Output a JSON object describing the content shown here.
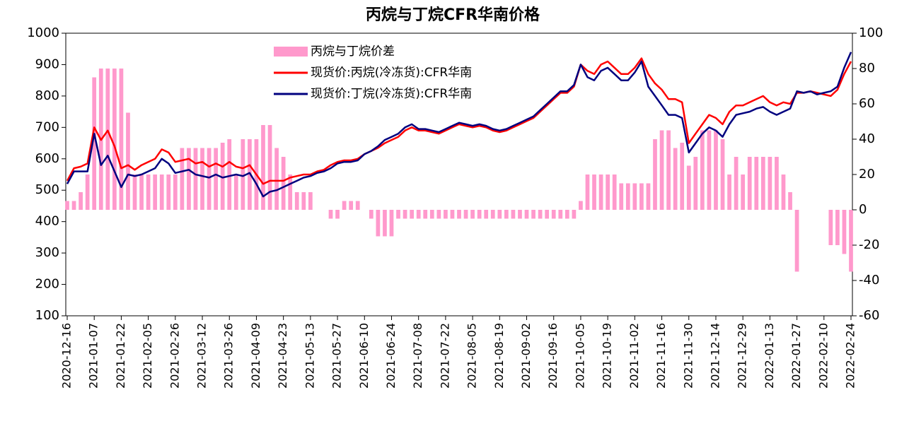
{
  "chart_data": {
    "type": "combo",
    "title": "丙烷与丁烷CFR华南价格",
    "categories": [
      "2020-12-16",
      null,
      null,
      null,
      "2021-01-07",
      null,
      null,
      null,
      "2021-01-22",
      null,
      null,
      null,
      "2021-02-05",
      null,
      null,
      null,
      "2021-02-26",
      null,
      null,
      null,
      "2021-03-12",
      null,
      null,
      null,
      "2021-03-26",
      null,
      null,
      null,
      "2021-04-09",
      null,
      null,
      null,
      "2021-04-23",
      null,
      null,
      null,
      "2021-05-13",
      null,
      null,
      null,
      "2021-05-27",
      null,
      null,
      null,
      "2021-06-10",
      null,
      null,
      null,
      "2021-06-24",
      null,
      null,
      null,
      "2021-07-08",
      null,
      null,
      null,
      "2021-07-22",
      null,
      null,
      null,
      "2021-08-05",
      null,
      null,
      null,
      "2021-08-19",
      null,
      null,
      null,
      "2021-09-02",
      null,
      null,
      null,
      "2021-09-16",
      null,
      null,
      null,
      "2021-10-05",
      null,
      null,
      null,
      "2021-10-19",
      null,
      null,
      null,
      "2021-11-02",
      null,
      null,
      null,
      "2021-11-16",
      null,
      null,
      null,
      "2021-11-30",
      null,
      null,
      null,
      "2021-12-14",
      null,
      null,
      null,
      "2021-12-29",
      null,
      null,
      null,
      "2022-01-13",
      null,
      null,
      null,
      "2022-01-27",
      null,
      null,
      null,
      "2022-02-10",
      null,
      null,
      null,
      "2022-02-24"
    ],
    "series": [
      {
        "name": "丙烷与丁烷价差",
        "type": "bar",
        "axis": "y2",
        "color": "#ff99cc",
        "values": [
          5,
          5,
          10,
          20,
          75,
          80,
          80,
          80,
          80,
          55,
          20,
          20,
          20,
          20,
          20,
          20,
          20,
          35,
          35,
          35,
          35,
          35,
          35,
          38,
          40,
          20,
          40,
          40,
          40,
          48,
          48,
          35,
          30,
          20,
          10,
          10,
          10,
          0,
          0,
          -5,
          -5,
          5,
          5,
          5,
          0,
          -5,
          -15,
          -15,
          -15,
          -5,
          -5,
          -5,
          -5,
          -5,
          -5,
          -5,
          -5,
          -5,
          -5,
          -5,
          -5,
          -5,
          -5,
          -5,
          -5,
          -5,
          -5,
          -5,
          -5,
          -5,
          -5,
          -5,
          -5,
          -5,
          -5,
          -5,
          5,
          20,
          20,
          20,
          20,
          20,
          15,
          15,
          15,
          15,
          15,
          40,
          45,
          45,
          35,
          38,
          25,
          30,
          45,
          45,
          45,
          40,
          20,
          30,
          20,
          30,
          30,
          30,
          30,
          30,
          20,
          10,
          -35,
          0,
          0,
          0,
          0,
          -20,
          -20,
          -25,
          -35
        ]
      },
      {
        "name": "现货价:丙烷(冷冻货):CFR华南",
        "type": "line",
        "axis": "y",
        "color": "#ff0000",
        "values": [
          530,
          570,
          575,
          585,
          700,
          660,
          690,
          640,
          570,
          580,
          565,
          580,
          590,
          600,
          630,
          620,
          590,
          595,
          600,
          585,
          590,
          575,
          585,
          575,
          590,
          575,
          570,
          580,
          550,
          520,
          530,
          530,
          530,
          540,
          545,
          550,
          550,
          560,
          565,
          580,
          590,
          595,
          595,
          600,
          615,
          625,
          635,
          650,
          660,
          670,
          690,
          700,
          690,
          690,
          685,
          680,
          690,
          700,
          710,
          705,
          700,
          705,
          700,
          690,
          685,
          690,
          700,
          710,
          720,
          730,
          750,
          770,
          790,
          810,
          810,
          830,
          900,
          880,
          870,
          900,
          910,
          890,
          870,
          870,
          890,
          920,
          870,
          840,
          820,
          790,
          790,
          780,
          650,
          680,
          710,
          740,
          730,
          710,
          750,
          770,
          770,
          780,
          790,
          800,
          780,
          770,
          780,
          775,
          810,
          810,
          815,
          810,
          805,
          800,
          820,
          870,
          910
        ]
      },
      {
        "name": "现货价:丁烷(冷冻货):CFR华南",
        "type": "line",
        "axis": "y",
        "color": "#00007f",
        "values": [
          520,
          560,
          560,
          560,
          680,
          580,
          610,
          560,
          510,
          550,
          545,
          550,
          560,
          570,
          600,
          585,
          555,
          560,
          565,
          550,
          545,
          540,
          550,
          540,
          545,
          550,
          545,
          555,
          520,
          480,
          495,
          500,
          510,
          520,
          530,
          540,
          545,
          555,
          560,
          570,
          585,
          590,
          590,
          595,
          615,
          625,
          640,
          660,
          670,
          680,
          700,
          710,
          695,
          695,
          690,
          685,
          695,
          705,
          715,
          710,
          705,
          710,
          705,
          695,
          690,
          695,
          705,
          715,
          725,
          735,
          755,
          775,
          795,
          815,
          815,
          835,
          900,
          860,
          850,
          880,
          890,
          870,
          850,
          850,
          875,
          910,
          830,
          800,
          770,
          740,
          740,
          730,
          620,
          650,
          680,
          700,
          690,
          670,
          710,
          740,
          745,
          750,
          760,
          765,
          750,
          740,
          750,
          760,
          815,
          810,
          815,
          805,
          810,
          815,
          830,
          890,
          940
        ]
      }
    ],
    "ylim": [
      100,
      1000
    ],
    "yticks": [
      1000,
      900,
      800,
      700,
      600,
      500,
      400,
      300,
      200,
      100
    ],
    "y2lim": [
      -60,
      100
    ],
    "y2ticks": [
      100,
      80,
      60,
      40,
      20,
      0,
      -20,
      -40,
      -60
    ]
  }
}
